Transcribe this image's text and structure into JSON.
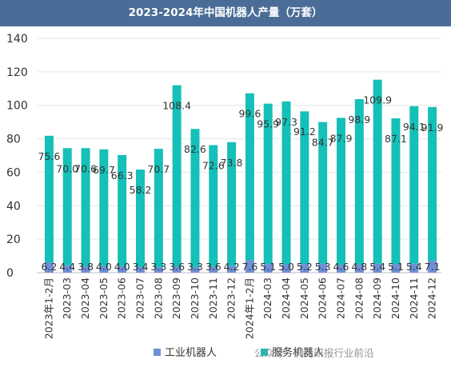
{
  "chart_data": {
    "type": "bar",
    "stacked": true,
    "title": "2023-2024年中国机器人产量（万套）",
    "categories": [
      "2023年1-2月",
      "2023-03",
      "2023-04",
      "2023-05",
      "2023-06",
      "2023-07",
      "2023-08",
      "2023-09",
      "2023-10",
      "2023-11",
      "2023-12",
      "2024年1-2月",
      "2024-03",
      "2024-04",
      "2024-05",
      "2024-06",
      "2024-07",
      "2024-08",
      "2024-09",
      "2024-10",
      "2024-11",
      "2024-12"
    ],
    "series": [
      {
        "name": "工业机器人",
        "color": "#6f8fd6",
        "values": [
          6.2,
          4.4,
          3.8,
          4.0,
          4.0,
          3.4,
          3.3,
          3.6,
          3.3,
          3.6,
          4.2,
          7.6,
          5.1,
          5.0,
          5.2,
          5.3,
          4.6,
          4.8,
          5.4,
          5.1,
          5.4,
          7.1
        ]
      },
      {
        "name": "服务机器人",
        "color": "#14c0b8",
        "values": [
          75.6,
          70.0,
          70.6,
          69.7,
          66.3,
          58.2,
          70.7,
          108.4,
          82.6,
          72.6,
          73.8,
          99.6,
          95.9,
          97.3,
          91.2,
          84.7,
          87.9,
          98.9,
          109.9,
          87.1,
          94.1,
          91.9
        ]
      }
    ],
    "yticks": [
      0,
      20,
      40,
      60,
      80,
      100,
      120,
      140
    ],
    "ylim": [
      0,
      140
    ],
    "grid": true,
    "legend_position": "bottom"
  },
  "watermark": "公众号 · 洞见研报行业前沿"
}
